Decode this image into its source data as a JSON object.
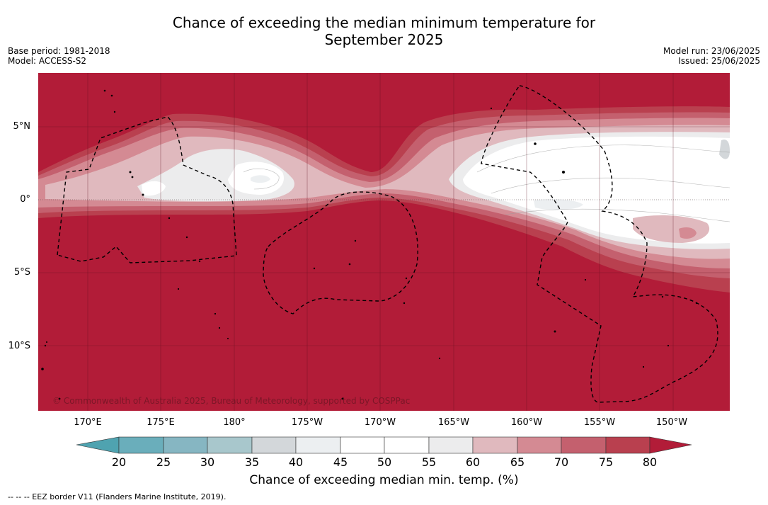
{
  "title_line1": "Chance of exceeding the median minimum temperature for",
  "title_line2": "September 2025",
  "base_period": "Base period: 1981-2018",
  "model": "Model: ACCESS-S2",
  "model_run": "Model run: 23/06/2025",
  "issued": "Issued: 25/06/2025",
  "copyright": "© Commonwealth of Australia 2025, Bureau of Meteorology, supported by COSPPac",
  "footer_note": "-- -- -- EEZ border V11 (Flanders Marine Institute, 2019).",
  "map": {
    "lat_labels": [
      "5°N",
      "0°",
      "5°S",
      "10°S"
    ],
    "lon_labels": [
      "170°E",
      "175°E",
      "180°",
      "175°W",
      "170°W",
      "165°W",
      "160°W",
      "155°W",
      "150°W"
    ]
  },
  "colorbar": {
    "label": "Chance of exceeding median min. temp. (%)",
    "ticks": [
      "20",
      "25",
      "30",
      "35",
      "40",
      "45",
      "50",
      "55",
      "60",
      "65",
      "70",
      "75",
      "80"
    ],
    "colors": {
      "below_20": "#4fa3b0",
      "20_25": "#6aaebb",
      "25_30": "#86b6c2",
      "30_35": "#a8c7cc",
      "35_40": "#d3d7da",
      "40_45": "#eceff1",
      "45_50": "#ffffff",
      "50_55": "#ffffff",
      "55_60": "#ececed",
      "60_65": "#e0b9be",
      "65_70": "#d48a93",
      "70_75": "#c4606e",
      "75_80": "#b9404f",
      "above_80": "#b21c38"
    }
  }
}
